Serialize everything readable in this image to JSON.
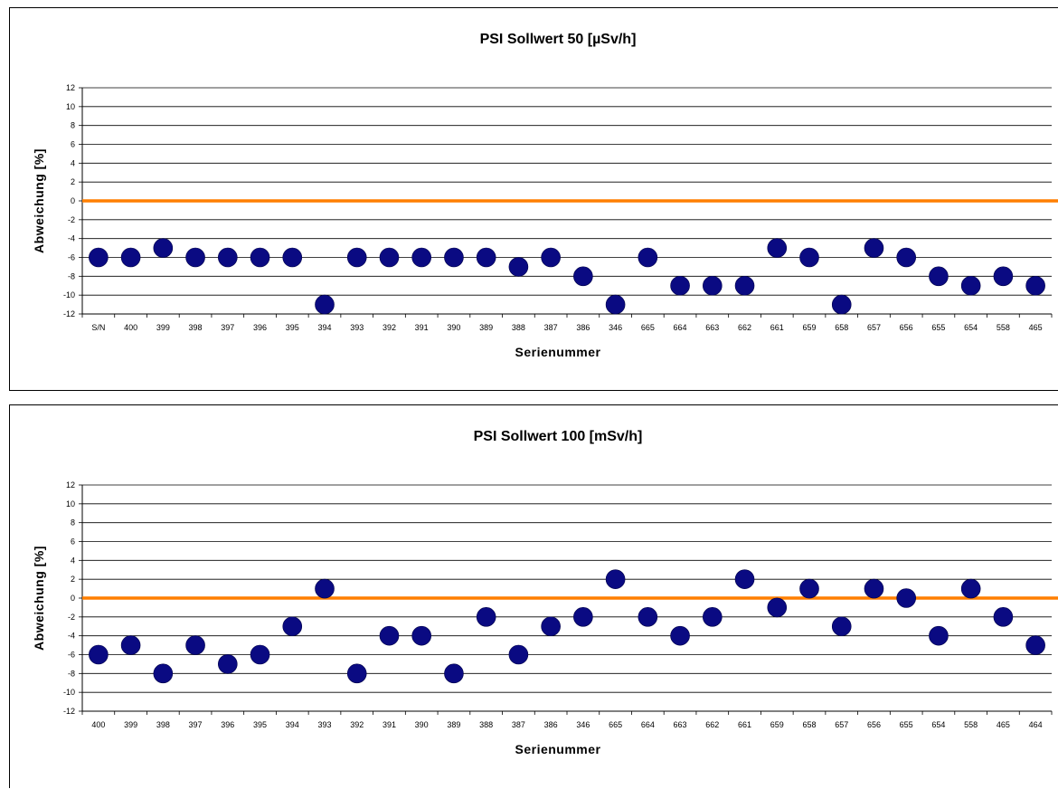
{
  "chart_data": [
    {
      "type": "scatter",
      "title": "PSI Sollwert 50 [µSv/h]",
      "xlabel": "Serienummer",
      "ylabel": "Abweichung [%]",
      "ylim": [
        -12,
        12
      ],
      "yticks": [
        12,
        10,
        8,
        6,
        4,
        2,
        0,
        -2,
        -4,
        -6,
        -8,
        -10,
        -12
      ],
      "grid": true,
      "categories": [
        "S/N",
        "400",
        "399",
        "398",
        "397",
        "396",
        "395",
        "394",
        "393",
        "392",
        "391",
        "390",
        "389",
        "388",
        "387",
        "386",
        "346",
        "665",
        "664",
        "663",
        "662",
        "661",
        "659",
        "658",
        "657",
        "656",
        "655",
        "654",
        "558",
        "465"
      ],
      "values": [
        -6,
        -6,
        -5,
        -6,
        -6,
        -6,
        -6,
        -11,
        -6,
        -6,
        -6,
        -6,
        -6,
        -7,
        -6,
        -8,
        -11,
        -6,
        -9,
        -9,
        -9,
        -5,
        -6,
        -11,
        -5,
        -6,
        -8,
        -9,
        -8,
        -9
      ],
      "reference_line": 0,
      "colors": {
        "points": "#0a0a82",
        "reference": "#ff7f00"
      }
    },
    {
      "type": "scatter",
      "title": "PSI Sollwert 100 [mSv/h]",
      "xlabel": "Serienummer",
      "ylabel": "Abweichung [%]",
      "ylim": [
        -12,
        12
      ],
      "yticks": [
        12,
        10,
        8,
        6,
        4,
        2,
        0,
        -2,
        -4,
        -6,
        -8,
        -10,
        -12
      ],
      "grid": true,
      "categories": [
        "400",
        "399",
        "398",
        "397",
        "396",
        "395",
        "394",
        "393",
        "392",
        "391",
        "390",
        "389",
        "388",
        "387",
        "386",
        "346",
        "665",
        "664",
        "663",
        "662",
        "661",
        "659",
        "658",
        "657",
        "656",
        "655",
        "654",
        "558",
        "465",
        "464"
      ],
      "values": [
        -6,
        -5,
        -8,
        -5,
        -7,
        -6,
        -3,
        1,
        -8,
        -4,
        -4,
        -8,
        -2,
        -6,
        -3,
        -2,
        2,
        -2,
        -4,
        -2,
        2,
        -1,
        1,
        -3,
        1,
        0,
        -4,
        1,
        -2,
        -5
      ],
      "reference_line": 0,
      "colors": {
        "points": "#0a0a82",
        "reference": "#ff7f00"
      }
    }
  ]
}
